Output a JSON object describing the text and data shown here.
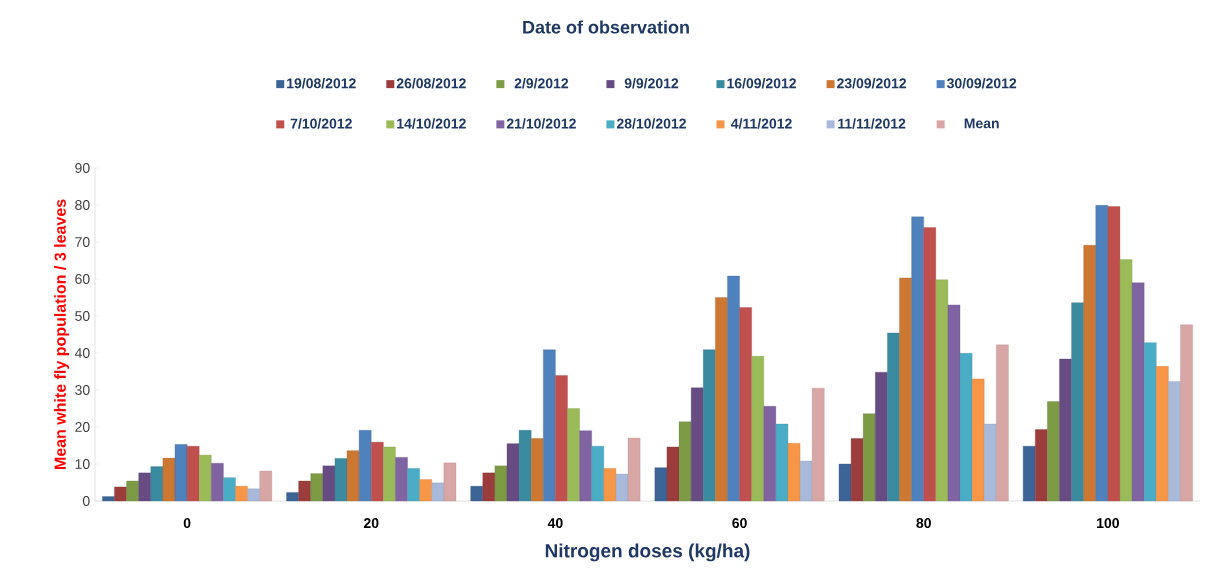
{
  "chart_data": {
    "type": "bar",
    "legend_title": "Date of observation",
    "xlabel": "Nitrogen doses (kg/ha)",
    "ylabel": "Mean white fly population / 3 leaves",
    "categories": [
      "0",
      "20",
      "40",
      "60",
      "80",
      "100"
    ],
    "ylim": [
      0,
      90
    ],
    "yticks": [
      0,
      10,
      20,
      30,
      40,
      50,
      60,
      70,
      80,
      90
    ],
    "legend": "top",
    "grid": false,
    "series": [
      {
        "name": "19/08/2012",
        "color": "#3c6496",
        "values": [
          1.2,
          2.3,
          4,
          9,
          10,
          14.8
        ]
      },
      {
        "name": "26/08/2012",
        "color": "#9c3d3d",
        "values": [
          3.8,
          5.4,
          7.6,
          14.6,
          16.9,
          19.3
        ]
      },
      {
        "name": "2/9/2012",
        "color": "#7d9a45",
        "values": [
          5.4,
          7.4,
          9.5,
          21.4,
          23.6,
          26.9
        ]
      },
      {
        "name": "9/9/2012",
        "color": "#664c82",
        "values": [
          7.6,
          9.5,
          15.5,
          30.6,
          34.8,
          38.4
        ]
      },
      {
        "name": "16/09/2012",
        "color": "#3a8ba0",
        "values": [
          9.3,
          11.5,
          19.1,
          40.9,
          45.4,
          53.6
        ]
      },
      {
        "name": "23/09/2012",
        "color": "#cc7832",
        "values": [
          11.6,
          13.6,
          16.9,
          55,
          60.3,
          69.1
        ]
      },
      {
        "name": "30/09/2012",
        "color": "#4f81bd",
        "values": [
          15.3,
          19.1,
          40.9,
          60.8,
          76.8,
          79.9
        ]
      },
      {
        "name": "7/10/2012",
        "color": "#c0504d",
        "values": [
          14.8,
          15.9,
          33.9,
          52.3,
          73.9,
          79.6
        ]
      },
      {
        "name": "14/10/2012",
        "color": "#9bbb59",
        "values": [
          12.4,
          14.6,
          25,
          39.1,
          59.8,
          65.3
        ]
      },
      {
        "name": "21/10/2012",
        "color": "#8064a2",
        "values": [
          10.2,
          11.8,
          19,
          25.6,
          53,
          59
        ]
      },
      {
        "name": "28/10/2012",
        "color": "#4bacc6",
        "values": [
          6.3,
          8.8,
          14.8,
          20.8,
          39.9,
          42.8
        ]
      },
      {
        "name": "4/11/2012",
        "color": "#f79646",
        "values": [
          4,
          5.8,
          8.8,
          15.6,
          33,
          36.4
        ]
      },
      {
        "name": "11/11/2012",
        "color": "#a9b9d9",
        "values": [
          3.3,
          4.9,
          7.3,
          10.8,
          20.8,
          32.3
        ]
      },
      {
        "name": "Mean",
        "color": "#d9a6a6",
        "values": [
          8.1,
          10.3,
          17,
          30.5,
          42.2,
          47.6
        ]
      }
    ]
  }
}
